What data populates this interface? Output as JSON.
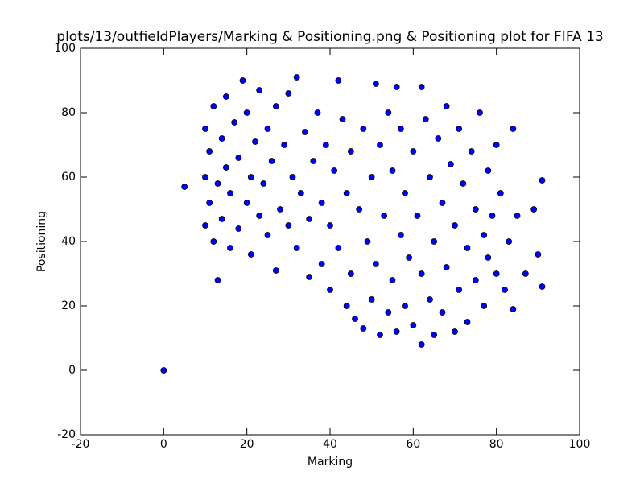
{
  "chart_data": {
    "type": "scatter",
    "title": "plots/13/outfieldPlayers/Marking & Positioning.png & Positioning plot for FIFA 13",
    "x_label": "Marking",
    "y_label": "Positioning",
    "color": "#0000ff",
    "edge_color": "#000000",
    "grid": false,
    "xlim": [
      -20,
      100
    ],
    "ylim": [
      -20,
      100
    ],
    "xticks": [
      -20,
      0,
      20,
      40,
      60,
      80,
      100
    ],
    "yticks": [
      -20,
      0,
      20,
      40,
      60,
      80,
      100
    ],
    "x": [
      10,
      10,
      10,
      11,
      11,
      12,
      12,
      13,
      13,
      14,
      14,
      15,
      15,
      16,
      16,
      17,
      18,
      18,
      19,
      20,
      20,
      21,
      21,
      22,
      23,
      23,
      24,
      25,
      25,
      26,
      27,
      27,
      28,
      29,
      30,
      30,
      31,
      32,
      32,
      33,
      34,
      35,
      35,
      36,
      37,
      38,
      38,
      39,
      40,
      40,
      41,
      42,
      42,
      43,
      44,
      44,
      45,
      45,
      46,
      47,
      48,
      48,
      49,
      50,
      50,
      51,
      51,
      52,
      52,
      53,
      54,
      54,
      55,
      55,
      56,
      56,
      57,
      57,
      58,
      58,
      59,
      60,
      60,
      61,
      62,
      62,
      62,
      63,
      64,
      64,
      65,
      65,
      66,
      67,
      67,
      68,
      68,
      69,
      70,
      70,
      71,
      71,
      72,
      73,
      73,
      74,
      75,
      75,
      76,
      77,
      77,
      78,
      78,
      79,
      80,
      80,
      81,
      82,
      83,
      84,
      84,
      85,
      87,
      89,
      90,
      91,
      91,
      5,
      0
    ],
    "y": [
      45,
      60,
      75,
      52,
      68,
      40,
      82,
      58,
      28,
      47,
      72,
      63,
      85,
      38,
      55,
      77,
      44,
      66,
      90,
      52,
      80,
      36,
      60,
      71,
      48,
      87,
      58,
      42,
      75,
      65,
      31,
      82,
      50,
      70,
      45,
      86,
      60,
      91,
      38,
      55,
      74,
      47,
      29,
      65,
      80,
      52,
      33,
      70,
      45,
      25,
      62,
      90,
      38,
      78,
      55,
      20,
      30,
      68,
      16,
      50,
      13,
      75,
      40,
      60,
      22,
      89,
      33,
      11,
      70,
      48,
      18,
      80,
      28,
      62,
      12,
      88,
      42,
      75,
      20,
      55,
      35,
      68,
      14,
      48,
      8,
      88,
      30,
      78,
      22,
      60,
      40,
      11,
      72,
      18,
      52,
      32,
      82,
      64,
      12,
      45,
      25,
      75,
      58,
      38,
      15,
      68,
      28,
      50,
      80,
      20,
      42,
      62,
      35,
      48,
      30,
      70,
      55,
      25,
      40,
      19,
      75,
      48,
      30,
      50,
      36,
      59,
      26,
      57,
      0
    ]
  }
}
